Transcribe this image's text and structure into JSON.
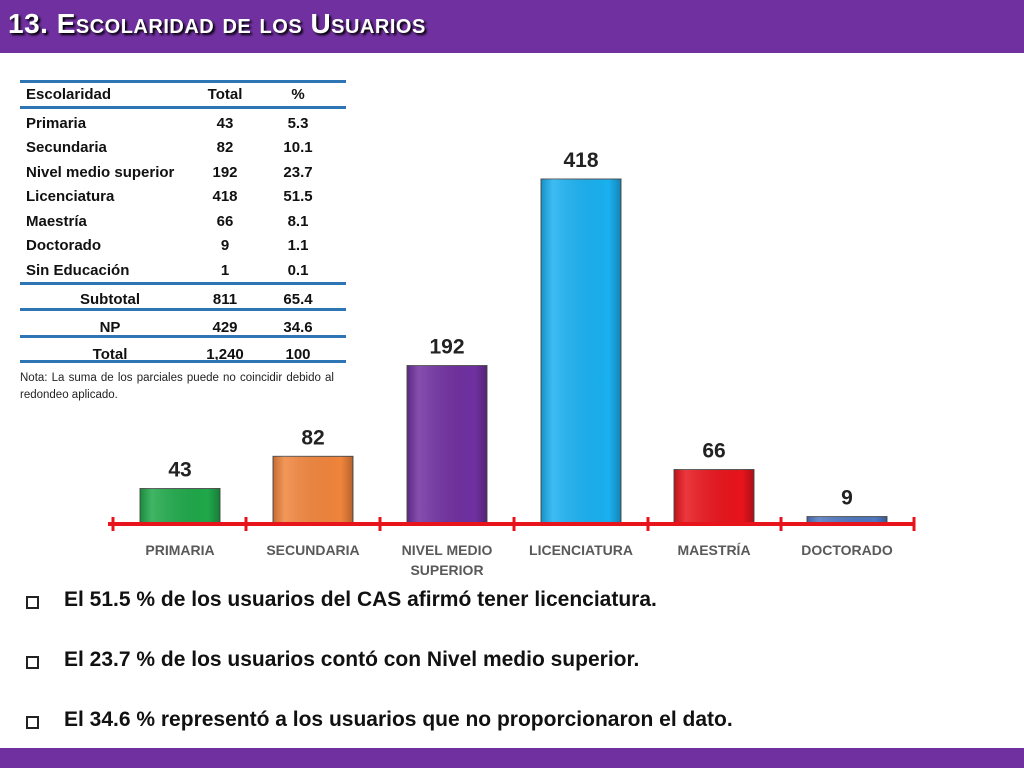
{
  "title": "13. Escolaridad de los Usuarios",
  "table": {
    "headers": [
      "Escolaridad",
      "Total",
      "%"
    ],
    "rows": [
      [
        "Primaria",
        "43",
        "5.3"
      ],
      [
        "Secundaria",
        "82",
        "10.1"
      ],
      [
        "Nivel medio superior",
        "192",
        "23.7"
      ],
      [
        "Licenciatura",
        "418",
        "51.5"
      ],
      [
        "Maestría",
        "66",
        "8.1"
      ],
      [
        "Doctorado",
        "9",
        "1.1"
      ],
      [
        "Sin Educación",
        "1",
        "0.1"
      ]
    ],
    "subtotal": [
      "Subtotal",
      "811",
      "65.4"
    ],
    "np": [
      "NP",
      "429",
      "34.6"
    ],
    "total": [
      "Total",
      "1,240",
      "100"
    ],
    "note": "Nota: La suma de los parciales puede no coincidir debido al redondeo aplicado."
  },
  "chart_data": {
    "type": "bar",
    "categories": [
      "PRIMARIA",
      "SECUNDARIA",
      "NIVEL MEDIO SUPERIOR",
      "LICENCIATURA",
      "MAESTRÍA",
      "DOCTORADO"
    ],
    "category_lines": [
      [
        "PRIMARIA"
      ],
      [
        "SECUNDARIA"
      ],
      [
        "NIVEL MEDIO",
        "SUPERIOR"
      ],
      [
        "LICENCIATURA"
      ],
      [
        "MAESTRÍA"
      ],
      [
        "DOCTORADO"
      ]
    ],
    "values": [
      43,
      82,
      192,
      418,
      66,
      9
    ],
    "colors": [
      "#1fa84a",
      "#f0843c",
      "#7030a0",
      "#1ab0f0",
      "#e8141c",
      "#4f77c0"
    ],
    "axis_color": "#e8141c",
    "grid": false,
    "title": "",
    "xlabel": "",
    "ylabel": ""
  },
  "bullets": [
    "El 51.5 % de los usuarios del CAS afirmó tener licenciatura.",
    "El 23.7 % de los usuarios contó con Nivel medio superior.",
    "El  34.6 % representó a los usuarios que no proporcionaron el dato."
  ]
}
